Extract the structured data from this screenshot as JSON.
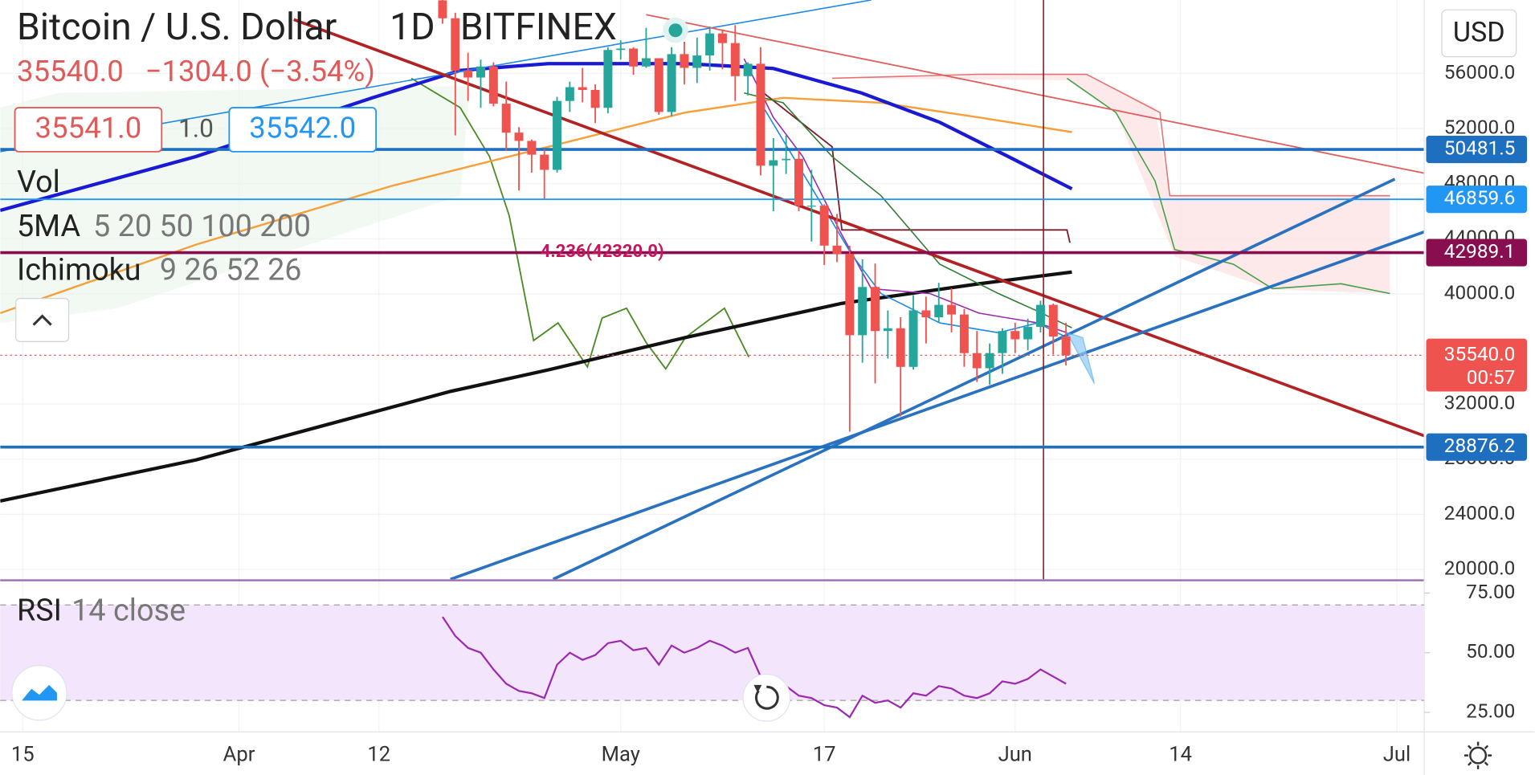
{
  "header": {
    "symbol": "Bitcoin / U.S. Dollar",
    "interval": "1D",
    "exchange": "BITFINEX",
    "last": "35540.0",
    "change": "−1304.0 (−3.54%)",
    "bid": "35541.0",
    "spread": "1.0",
    "ask": "35542.0",
    "currency": "USD"
  },
  "indicators": {
    "vol": "Vol",
    "ma_name": "5MA",
    "ma_params": "5 20 50 100 200",
    "ichimoku_name": "Ichimoku",
    "ichimoku_params": "9 26 52 26"
  },
  "chart_data": {
    "type": "candlestick",
    "categories": [
      "15",
      null,
      null,
      null,
      null,
      null,
      null,
      null,
      null,
      null,
      null,
      null,
      null,
      null,
      null,
      null,
      null,
      "Apr",
      null,
      null,
      null,
      null,
      null,
      null,
      null,
      null,
      null,
      null,
      "12",
      null,
      null,
      null,
      null,
      null,
      null,
      null,
      null,
      null,
      null,
      null,
      null,
      null,
      null,
      null,
      null,
      null,
      null,
      "May",
      null,
      null,
      null,
      null,
      null,
      null,
      null,
      null,
      null,
      null,
      null,
      null,
      null,
      null,
      null,
      "17",
      null,
      null,
      null,
      null,
      null,
      null,
      null,
      null,
      null,
      null,
      null,
      null,
      null,
      null,
      "Jun",
      null,
      null,
      null,
      null,
      null,
      null,
      null,
      null,
      null,
      null,
      null,
      null,
      "14",
      null,
      null,
      null,
      null,
      null,
      null,
      null,
      null,
      null,
      null,
      null,
      null,
      null,
      null,
      null,
      null,
      "Jul",
      null
    ],
    "open": [
      null,
      null,
      null,
      null,
      null,
      null,
      null,
      null,
      null,
      null,
      null,
      null,
      null,
      null,
      null,
      null,
      null,
      null,
      null,
      null,
      null,
      null,
      null,
      null,
      null,
      null,
      null,
      null,
      null,
      null,
      null,
      null,
      null,
      61300,
      60000,
      56200,
      55700,
      56500,
      53800,
      51700,
      51100,
      50100,
      49000,
      54000,
      55000,
      54800,
      53500,
      57700,
      57800,
      56500,
      57100,
      53200,
      57400,
      56400,
      57300,
      58900,
      58200,
      55800,
      56700,
      49300,
      49700,
      49800,
      46400,
      46400,
      43500,
      42900,
      37000,
      40500,
      37300,
      37500,
      34700,
      38800,
      38300,
      39200,
      38500,
      35700,
      34600,
      35700,
      37300,
      36700,
      37600,
      39200,
      36900,
      null,
      null,
      null,
      null,
      null,
      null,
      null,
      null,
      null,
      null,
      null,
      null,
      null,
      null,
      null,
      null,
      null,
      null,
      null,
      null,
      null,
      null,
      null,
      null,
      null,
      null,
      null
    ],
    "high": [
      null,
      null,
      null,
      null,
      null,
      null,
      null,
      null,
      null,
      null,
      null,
      null,
      null,
      null,
      null,
      null,
      null,
      null,
      null,
      null,
      null,
      null,
      null,
      null,
      null,
      null,
      null,
      null,
      null,
      null,
      null,
      null,
      null,
      62500,
      60400,
      57500,
      57000,
      56800,
      55400,
      52100,
      51200,
      50500,
      54300,
      55400,
      56400,
      55200,
      57900,
      58400,
      57900,
      59300,
      57100,
      57900,
      58300,
      58600,
      59400,
      59200,
      59500,
      56800,
      57900,
      51300,
      51500,
      50500,
      49000,
      46500,
      45800,
      43500,
      42500,
      42200,
      38800,
      38300,
      39900,
      39800,
      40800,
      40400,
      38900,
      37300,
      36400,
      37500,
      37900,
      38200,
      39500,
      39300,
      37900,
      null,
      null,
      null,
      null,
      null,
      null,
      null,
      null,
      null,
      null,
      null,
      null,
      null,
      null,
      null,
      null,
      null,
      null,
      null,
      null,
      null,
      null,
      null,
      null,
      null,
      null,
      null
    ],
    "low": [
      null,
      null,
      null,
      null,
      null,
      null,
      null,
      null,
      null,
      null,
      null,
      null,
      null,
      null,
      null,
      null,
      null,
      null,
      null,
      null,
      null,
      null,
      null,
      null,
      null,
      null,
      null,
      null,
      null,
      null,
      null,
      null,
      null,
      59600,
      51500,
      54000,
      53500,
      53600,
      50400,
      47500,
      48800,
      46900,
      48800,
      53200,
      53900,
      52400,
      53100,
      57000,
      55900,
      56400,
      53000,
      52900,
      55200,
      55300,
      56200,
      56300,
      54000,
      54400,
      48600,
      46000,
      48700,
      46000,
      43800,
      42100,
      42300,
      30000,
      35000,
      33500,
      35300,
      31100,
      34500,
      36400,
      37900,
      37200,
      34700,
      33600,
      33400,
      34200,
      35700,
      35900,
      37200,
      35600,
      34800,
      null,
      null,
      null,
      null,
      null,
      null,
      null,
      null,
      null,
      null,
      null,
      null,
      null,
      null,
      null,
      null,
      null,
      null,
      null,
      null,
      null,
      null,
      null,
      null,
      null,
      null,
      null
    ],
    "close": [
      null,
      null,
      null,
      null,
      null,
      null,
      null,
      null,
      null,
      null,
      null,
      null,
      null,
      null,
      null,
      null,
      null,
      null,
      null,
      null,
      null,
      null,
      null,
      null,
      null,
      null,
      null,
      null,
      null,
      null,
      null,
      null,
      null,
      60000,
      56200,
      55700,
      56500,
      53800,
      51700,
      51100,
      50100,
      49000,
      54000,
      55000,
      54800,
      53500,
      57700,
      57800,
      56500,
      57100,
      53200,
      57400,
      56400,
      57300,
      58900,
      58200,
      55800,
      56700,
      49300,
      49700,
      49800,
      46400,
      46400,
      43500,
      42900,
      37000,
      40500,
      37300,
      37500,
      34700,
      38800,
      38300,
      39200,
      38500,
      35700,
      34600,
      35700,
      37300,
      36700,
      37600,
      39200,
      36900,
      35540,
      null,
      null,
      null,
      null,
      null,
      null,
      null,
      null,
      null,
      null,
      null,
      null,
      null,
      null,
      null,
      null,
      null,
      null,
      null,
      null,
      null,
      null,
      null,
      null,
      null,
      null,
      null
    ],
    "up_color": "#26a69a",
    "down_color": "#ef5350",
    "ylim": [
      19282,
      61327
    ],
    "yticks": [
      {
        "value": 20000,
        "label": "20000.0"
      },
      {
        "value": 24000,
        "label": "24000.0"
      },
      {
        "value": 28000,
        "label": "28000.0"
      },
      {
        "value": 32000,
        "label": "32000.0"
      },
      {
        "value": 40000,
        "label": "40000.0"
      },
      {
        "value": 44000,
        "label": "44000.0"
      },
      {
        "value": 48000,
        "label": "48000.0"
      },
      {
        "value": 52000,
        "label": "52000.0"
      },
      {
        "value": 56000,
        "label": "56000.0"
      }
    ],
    "grid": true,
    "price_lines": [
      {
        "value": 50481.5,
        "color": "#1e6fbf",
        "width": 3
      },
      {
        "value": 46859.6,
        "color": "#2196f3",
        "width": 1.5
      },
      {
        "value": 42989.1,
        "color": "#880e4f",
        "width": 3
      },
      {
        "value": 28876.2,
        "color": "#1e6fbf",
        "width": 3
      }
    ],
    "last_price": {
      "value": 35540,
      "label": "35540.0",
      "countdown": "00:57",
      "color": "#ef5350"
    },
    "fib_label": "4.236(42320.0)",
    "rsi": {
      "name": "RSI",
      "params": "14 close",
      "color": "#9c27b0",
      "values": [
        null,
        null,
        null,
        null,
        null,
        null,
        null,
        null,
        null,
        null,
        null,
        null,
        null,
        null,
        null,
        null,
        null,
        null,
        null,
        null,
        null,
        null,
        null,
        null,
        null,
        null,
        null,
        null,
        null,
        null,
        null,
        null,
        null,
        65,
        57,
        52,
        50,
        43,
        37,
        34,
        33,
        31,
        45,
        50,
        47,
        49,
        54,
        55,
        51,
        52,
        45,
        53,
        50,
        52,
        55,
        53,
        50,
        52,
        40,
        37,
        36,
        32,
        31,
        28,
        27,
        23,
        32,
        29,
        30,
        27,
        33,
        32,
        36,
        35,
        32,
        31,
        33,
        38,
        37,
        39,
        43,
        40,
        37,
        null,
        null,
        null,
        null,
        null,
        null,
        null,
        null,
        null,
        null,
        null,
        null,
        null,
        null,
        null,
        null,
        null,
        null,
        null,
        null,
        null,
        null,
        null,
        null,
        null,
        null,
        null
      ],
      "ylim": [
        16.8,
        78.3
      ],
      "yticks": [
        {
          "value": 25,
          "label": "25.00"
        },
        {
          "value": 50,
          "label": "50.00"
        },
        {
          "value": 75,
          "label": "75.00"
        }
      ],
      "bands": [
        30,
        70
      ]
    }
  }
}
